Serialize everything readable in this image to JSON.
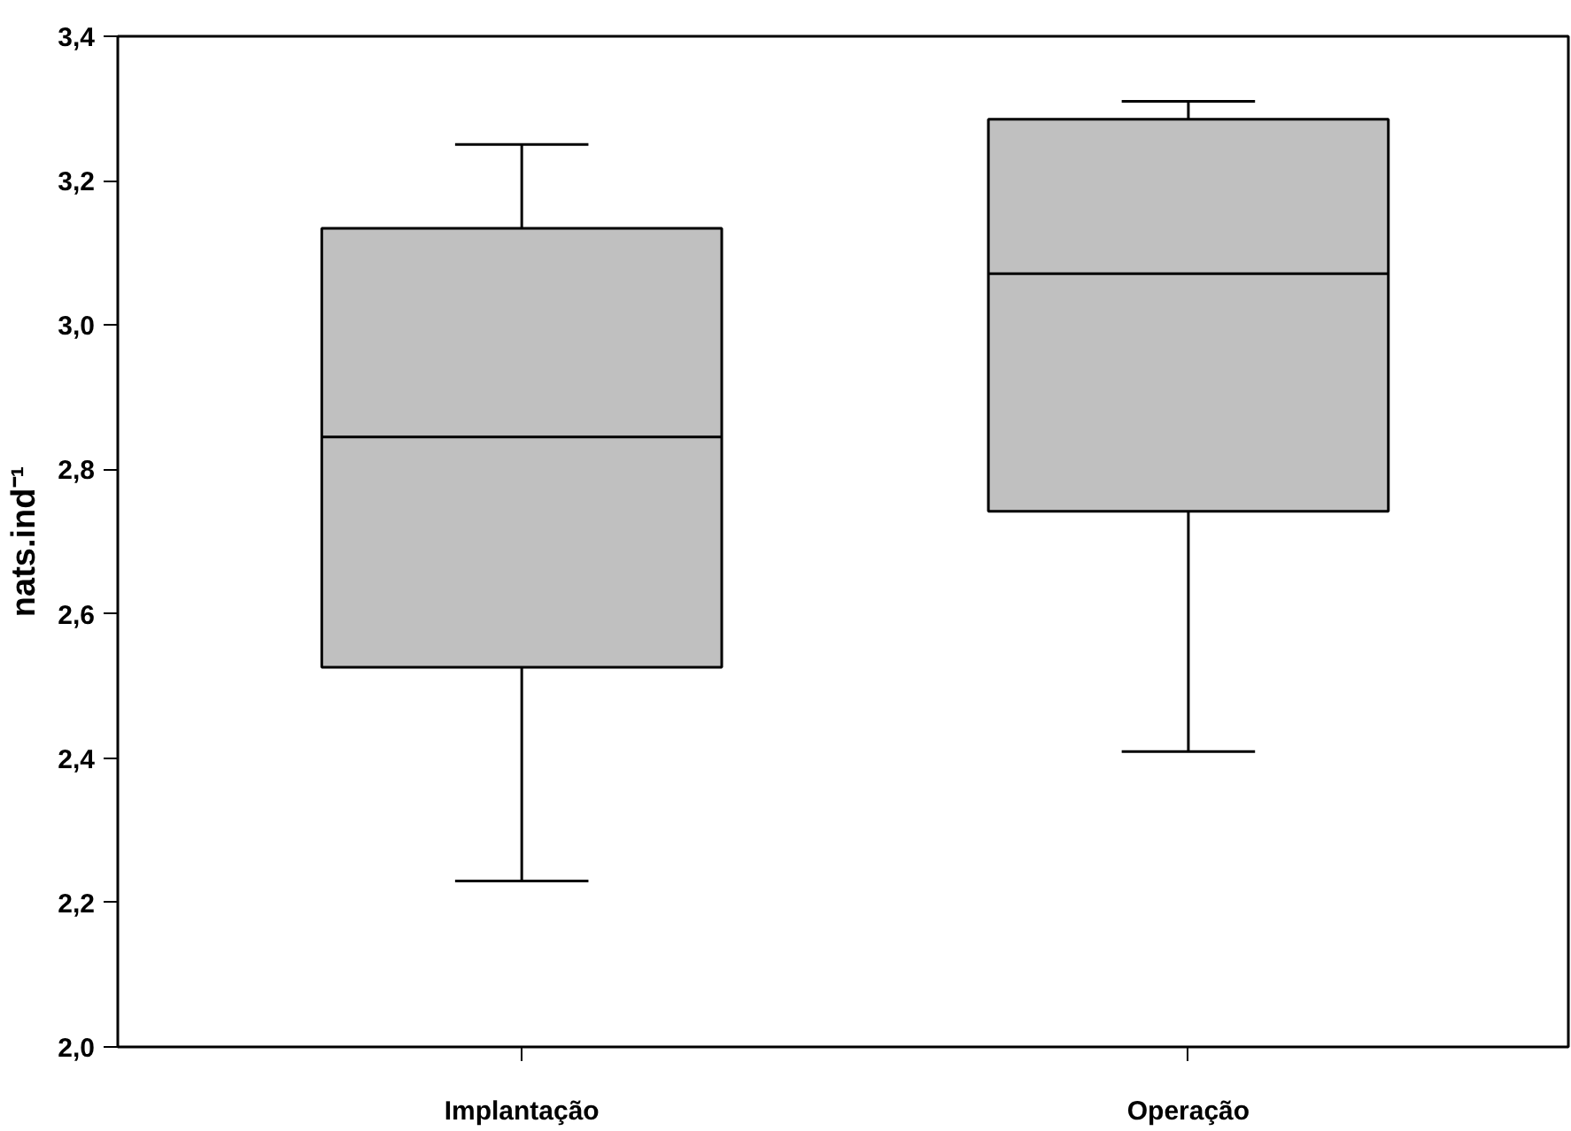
{
  "chart_data": {
    "type": "box",
    "ylabel": "nats.ind⁻¹",
    "categories": [
      "Implantação",
      "Operação"
    ],
    "boxes": [
      {
        "low": 2.23,
        "q1": 2.526,
        "median": 2.845,
        "q3": 3.134,
        "high": 3.25
      },
      {
        "low": 2.409,
        "q1": 2.742,
        "median": 3.071,
        "q3": 3.285,
        "high": 3.31
      }
    ],
    "color": "#c0c0c0",
    "ylim": [
      2.0,
      3.4
    ],
    "yticks": [
      {
        "value": 2.0,
        "label": "2,0"
      },
      {
        "value": 2.2,
        "label": "2,2"
      },
      {
        "value": 2.4,
        "label": "2,4"
      },
      {
        "value": 2.6,
        "label": "2,6"
      },
      {
        "value": 2.8,
        "label": "2,8"
      },
      {
        "value": 3.0,
        "label": "3,0"
      },
      {
        "value": 3.2,
        "label": "3,2"
      },
      {
        "value": 3.4,
        "label": "3,4"
      }
    ],
    "grid": false
  }
}
